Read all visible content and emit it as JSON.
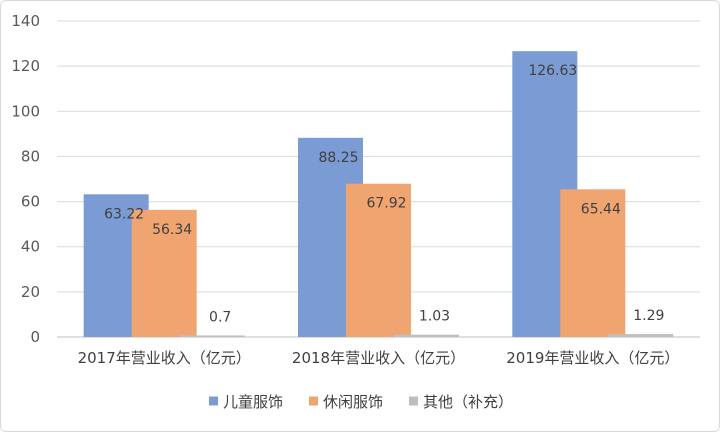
{
  "chart_data": {
    "type": "bar",
    "title": "",
    "xlabel": "",
    "ylabel": "",
    "categories": [
      "2017年营业收入（亿元）",
      "2018年营业收入（亿元）",
      "2019年营业收入（亿元）"
    ],
    "series": [
      {
        "name": "儿童服饰",
        "values": [
          63.22,
          88.25,
          126.63
        ],
        "color": "#7b9bd4"
      },
      {
        "name": "休闲服饰",
        "values": [
          56.34,
          67.92,
          65.44
        ],
        "color": "#f0a571"
      },
      {
        "name": "其他（补充）",
        "values": [
          0.7,
          1.03,
          1.29
        ],
        "color": "#bfbfbf"
      }
    ],
    "data_labels": [
      [
        "63.22",
        "88.25",
        "126.63"
      ],
      [
        "56.34",
        "67.92",
        "65.44"
      ],
      [
        "0.7",
        "1.03",
        "1.29"
      ]
    ],
    "ylim": [
      0,
      140
    ],
    "yticks": [
      0,
      20,
      40,
      60,
      80,
      100,
      120,
      140
    ],
    "grid": true,
    "legend_position": "bottom"
  }
}
